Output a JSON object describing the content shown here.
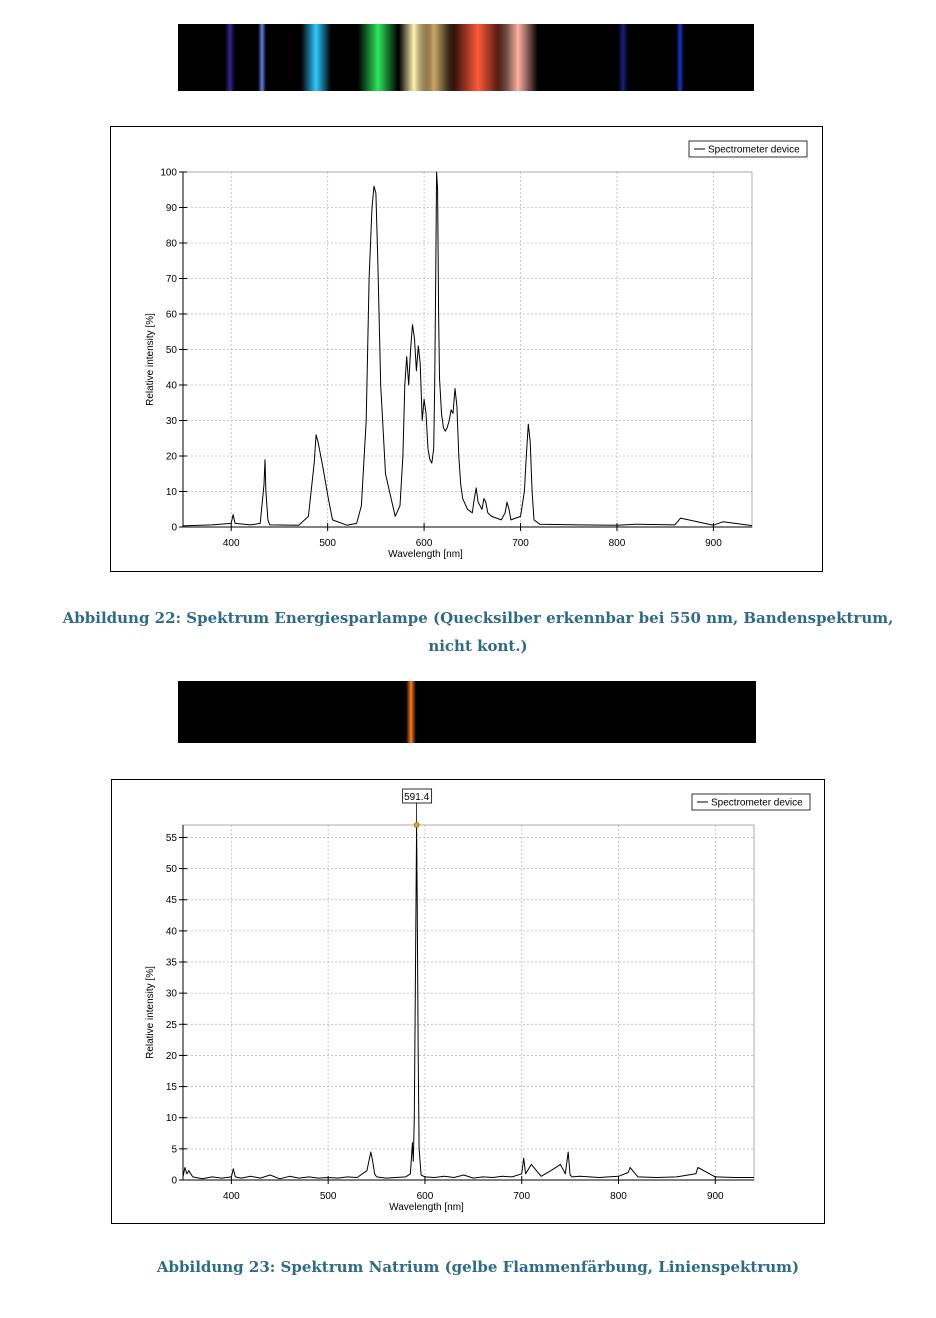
{
  "figure22": {
    "caption_line1": "Abbildung 22: Spektrum Energiesparlampe (Quecksilber erkennbar bei 550 nm, Bandenspektrum,",
    "caption_line2": "nicht kont.)",
    "spectrum_strip": {
      "description": "photographed emission spectrum",
      "bands": [
        {
          "color": "#5a3cff",
          "intensity": 0.6
        },
        {
          "color": "#6a8cff",
          "intensity": 0.9
        },
        {
          "color": "#2fc8ff",
          "intensity": 1.0
        },
        {
          "color": "#33ff66",
          "intensity": 0.9
        },
        {
          "color": "#fff3b0",
          "intensity": 1.0
        },
        {
          "color": "#ffd080",
          "intensity": 0.8
        },
        {
          "color": "#ff5a3a",
          "intensity": 1.0
        },
        {
          "color": "#ffb0a0",
          "intensity": 1.0
        },
        {
          "color": "#3040ff",
          "intensity": 0.5
        },
        {
          "color": "#2040ff",
          "intensity": 0.8
        }
      ]
    }
  },
  "figure23": {
    "caption": "Abbildung 23: Spektrum Natrium (gelbe Flammenfärbung, Linienspektrum)",
    "spectrum_strip": {
      "bands": [
        {
          "color": "#ff7a1a",
          "intensity": 1.0
        }
      ]
    }
  },
  "chart_data": [
    {
      "type": "line",
      "title": "",
      "xlabel": "Wavelength [nm]",
      "ylabel": "Relative intensity [%]",
      "xlim": [
        350,
        940
      ],
      "ylim": [
        0,
        100
      ],
      "xticks": [
        400,
        500,
        600,
        700,
        800,
        900
      ],
      "yticks": [
        0,
        10,
        20,
        30,
        40,
        50,
        60,
        70,
        80,
        90,
        100
      ],
      "grid": true,
      "legend": {
        "position": "top-right",
        "entries": [
          "Spectrometer device"
        ]
      },
      "series": [
        {
          "name": "Spectrometer device",
          "x": [
            350,
            380,
            400,
            402,
            404,
            420,
            430,
            434,
            435,
            436,
            438,
            440,
            470,
            480,
            486,
            488,
            490,
            495,
            500,
            505,
            520,
            530,
            535,
            540,
            543,
            546,
            548,
            550,
            552,
            555,
            560,
            570,
            575,
            578,
            580,
            582,
            584,
            586,
            588,
            590,
            592,
            594,
            596,
            598,
            600,
            602,
            604,
            606,
            608,
            610,
            611,
            612,
            613,
            614,
            615,
            616,
            618,
            620,
            622,
            624,
            626,
            628,
            630,
            632,
            634,
            636,
            638,
            640,
            645,
            650,
            652,
            654,
            656,
            660,
            662,
            664,
            666,
            670,
            680,
            684,
            686,
            688,
            690,
            700,
            704,
            706,
            708,
            710,
            712,
            714,
            720,
            760,
            800,
            820,
            860,
            866,
            900,
            910,
            940
          ],
          "y": [
            0.3,
            0.6,
            1.0,
            3.5,
            1.0,
            0.6,
            1.0,
            12,
            19,
            10,
            2,
            0.6,
            0.5,
            3,
            18,
            26,
            24,
            17,
            9,
            2,
            0.5,
            1,
            6,
            30,
            70,
            90,
            96,
            94,
            75,
            40,
            15,
            3,
            6,
            20,
            40,
            48,
            40,
            50,
            57,
            53,
            44,
            51,
            46,
            30,
            36,
            32,
            22,
            19,
            18,
            22,
            40,
            70,
            100,
            95,
            60,
            42,
            32,
            28,
            27,
            28,
            30,
            33,
            32,
            39,
            34,
            20,
            12,
            8,
            5,
            4,
            8,
            11,
            7,
            5,
            8,
            7,
            4,
            3,
            2,
            4,
            7,
            5,
            2,
            3,
            10,
            20,
            29,
            24,
            10,
            2,
            0.8,
            0.6,
            0.5,
            0.8,
            0.6,
            2.5,
            0.5,
            1.5,
            0.4
          ]
        }
      ]
    },
    {
      "type": "line",
      "title": "",
      "xlabel": "Wavelength [nm]",
      "ylabel": "Relative intensity [%]",
      "xlim": [
        350,
        940
      ],
      "ylim": [
        0,
        57
      ],
      "xticks": [
        400,
        500,
        600,
        700,
        800,
        900
      ],
      "yticks": [
        0,
        5,
        10,
        15,
        20,
        25,
        30,
        35,
        40,
        45,
        50,
        55
      ],
      "grid": true,
      "legend": {
        "position": "top-right",
        "entries": [
          "Spectrometer device"
        ]
      },
      "annotation": {
        "label": "591.4",
        "x": 591.4,
        "y": 57
      },
      "series": [
        {
          "name": "Spectrometer device",
          "x": [
            350,
            352,
            354,
            356,
            360,
            370,
            380,
            390,
            400,
            402,
            404,
            410,
            420,
            430,
            440,
            450,
            460,
            470,
            480,
            490,
            500,
            510,
            520,
            530,
            540,
            544,
            546,
            548,
            550,
            560,
            570,
            580,
            585,
            587,
            588,
            589,
            590,
            591.4,
            592,
            593,
            594,
            596,
            600,
            610,
            620,
            630,
            640,
            650,
            660,
            670,
            680,
            690,
            700,
            702,
            704,
            710,
            720,
            730,
            740,
            745,
            748,
            750,
            752,
            760,
            780,
            800,
            810,
            812,
            820,
            840,
            860,
            880,
            882,
            900,
            920,
            940
          ],
          "y": [
            0.5,
            2,
            1,
            1.5,
            0.5,
            0.2,
            0.5,
            0.3,
            0.5,
            1.8,
            0.5,
            0.3,
            0.6,
            0.3,
            0.8,
            0.2,
            0.6,
            0.3,
            0.5,
            0.3,
            0.4,
            0.3,
            0.5,
            0.4,
            1.5,
            4.5,
            3,
            1,
            0.5,
            0.3,
            0.4,
            0.5,
            1,
            6,
            3,
            10,
            30,
            57,
            45,
            20,
            5,
            0.8,
            0.5,
            0.4,
            0.6,
            0.4,
            0.8,
            0.3,
            0.5,
            0.4,
            0.6,
            0.5,
            1,
            3.5,
            1,
            2.5,
            0.6,
            1.5,
            2.5,
            1,
            4.5,
            0.8,
            0.5,
            0.6,
            0.4,
            0.6,
            1.2,
            2,
            0.5,
            0.4,
            0.5,
            1,
            2,
            0.5,
            0.4,
            0.4
          ]
        }
      ]
    }
  ]
}
